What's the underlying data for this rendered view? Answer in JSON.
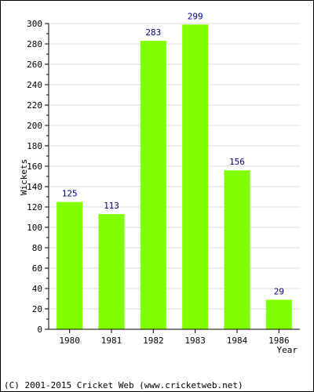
{
  "chart_data": {
    "type": "bar",
    "categories": [
      "1980",
      "1981",
      "1982",
      "1983",
      "1984",
      "1986"
    ],
    "values": [
      125,
      113,
      283,
      299,
      156,
      29
    ],
    "xlabel": "Year",
    "ylabel": "Wickets",
    "ylim": [
      0,
      300
    ],
    "yticks": [
      0,
      20,
      40,
      60,
      80,
      100,
      120,
      140,
      160,
      180,
      200,
      220,
      240,
      260,
      280,
      300
    ],
    "grid": true,
    "bar_color": "#80ff00",
    "label_color": "#000080"
  },
  "footer": {
    "copyright": "(C) 2001-2015 Cricket Web (www.cricketweb.net)"
  }
}
